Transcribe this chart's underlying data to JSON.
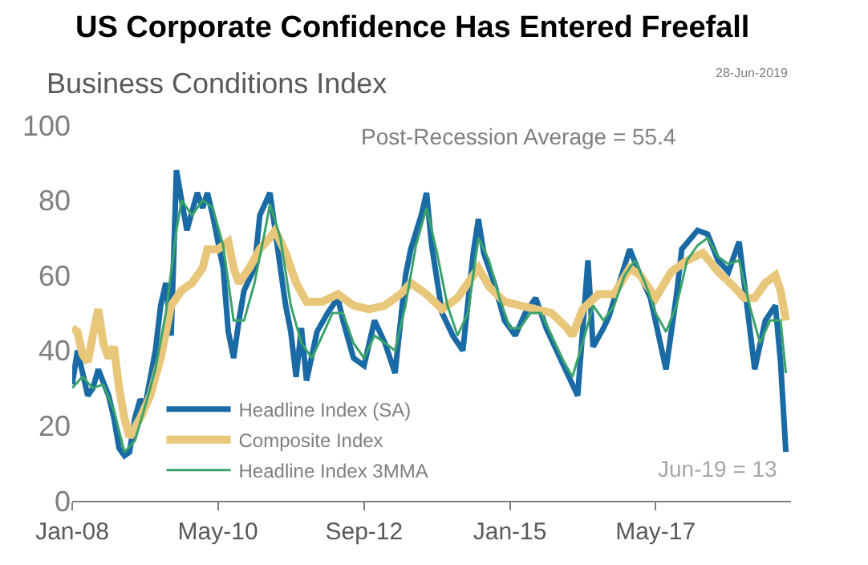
{
  "chart_data": {
    "type": "line",
    "title": "US Corporate Confidence Has Entered Freefall",
    "subtitle": "Business Conditions Index",
    "annotations": [
      "Post-Recession Average = 55.4",
      "28-Jun-2019",
      {
        "text": "Jun-19 = 13",
        "x": "2019-06",
        "y": 13
      }
    ],
    "xlim": [
      "2008-01",
      "2019-07"
    ],
    "xticks": [
      {
        "value": "2008-01",
        "label": "Jan-08"
      },
      {
        "value": "2010-05",
        "label": "May-10"
      },
      {
        "value": "2012-09",
        "label": "Sep-12"
      },
      {
        "value": "2015-01",
        "label": "Jan-15"
      },
      {
        "value": "2017-05",
        "label": "May-17"
      }
    ],
    "ylim": [
      0,
      100
    ],
    "yticks": [
      0,
      20,
      40,
      60,
      80,
      100
    ],
    "legend": "bottom left",
    "series": [
      {
        "name": "Headline Index (SA)",
        "color": "#1a6aa5",
        "x": [
          "2008-01",
          "2008-02",
          "2008-04",
          "2008-05",
          "2008-06",
          "2008-08",
          "2008-09",
          "2008-10",
          "2008-11",
          "2008-12",
          "2009-01",
          "2009-02",
          "2009-03",
          "2009-05",
          "2009-06",
          "2009-07",
          "2009-08",
          "2009-09",
          "2009-10",
          "2009-11",
          "2010-01",
          "2010-02",
          "2010-03",
          "2010-04",
          "2010-06",
          "2010-07",
          "2010-08",
          "2010-09",
          "2010-10",
          "2010-12",
          "2011-01",
          "2011-03",
          "2011-04",
          "2011-05",
          "2011-06",
          "2011-07",
          "2011-08",
          "2011-09",
          "2011-10",
          "2011-12",
          "2012-02",
          "2012-04",
          "2012-05",
          "2012-07",
          "2012-09",
          "2012-11",
          "2013-01",
          "2013-03",
          "2013-05",
          "2013-06",
          "2013-08",
          "2013-09",
          "2013-10",
          "2013-12",
          "2014-02",
          "2014-04",
          "2014-06",
          "2014-07",
          "2014-08",
          "2014-10",
          "2014-12",
          "2015-02",
          "2015-04",
          "2015-06",
          "2015-08",
          "2015-10",
          "2015-12",
          "2016-02",
          "2016-04",
          "2016-05",
          "2016-07",
          "2016-08",
          "2016-10",
          "2016-12",
          "2017-02",
          "2017-04",
          "2017-07",
          "2017-09",
          "2017-10",
          "2018-01",
          "2018-03",
          "2018-05",
          "2018-07",
          "2018-09",
          "2018-10",
          "2018-12",
          "2019-02",
          "2019-04",
          "2019-05",
          "2019-06"
        ],
        "values": [
          31,
          40,
          28,
          30,
          35,
          28,
          22,
          14,
          12,
          13,
          22,
          27,
          25,
          40,
          52,
          58,
          44,
          88,
          80,
          72,
          82,
          78,
          82,
          76,
          62,
          45,
          38,
          48,
          56,
          62,
          76,
          82,
          72,
          62,
          52,
          45,
          33,
          46,
          32,
          45,
          50,
          54,
          48,
          38,
          36,
          48,
          42,
          34,
          60,
          67,
          76,
          82,
          68,
          50,
          44,
          40,
          66,
          75,
          66,
          58,
          48,
          44,
          50,
          54,
          46,
          40,
          34,
          28,
          64,
          41,
          46,
          49,
          58,
          67,
          60,
          54,
          35,
          55,
          67,
          72,
          71,
          64,
          61,
          69,
          58,
          35,
          48,
          52,
          37,
          13
        ]
      },
      {
        "name": "Composite Index",
        "color": "#e8c77a",
        "x": [
          "2008-01",
          "2008-02",
          "2008-03",
          "2008-04",
          "2008-05",
          "2008-06",
          "2008-07",
          "2008-08",
          "2008-09",
          "2008-10",
          "2008-11",
          "2008-12",
          "2009-02",
          "2009-04",
          "2009-06",
          "2009-08",
          "2009-10",
          "2009-12",
          "2010-02",
          "2010-03",
          "2010-05",
          "2010-07",
          "2010-08",
          "2010-09",
          "2010-11",
          "2011-01",
          "2011-03",
          "2011-04",
          "2011-06",
          "2011-08",
          "2011-10",
          "2012-01",
          "2012-04",
          "2012-07",
          "2012-10",
          "2013-01",
          "2013-04",
          "2013-06",
          "2013-09",
          "2013-12",
          "2014-03",
          "2014-07",
          "2014-09",
          "2014-12",
          "2015-03",
          "2015-06",
          "2015-09",
          "2015-12",
          "2016-01",
          "2016-03",
          "2016-06",
          "2016-09",
          "2016-12",
          "2017-02",
          "2017-05",
          "2017-08",
          "2017-11",
          "2018-02",
          "2018-05",
          "2018-08",
          "2018-10",
          "2018-12",
          "2019-02",
          "2019-04",
          "2019-05",
          "2019-06"
        ],
        "values": [
          46,
          45,
          39,
          37,
          44,
          51,
          42,
          38,
          41,
          30,
          22,
          17,
          22,
          28,
          38,
          52,
          56,
          58,
          62,
          67,
          67,
          69,
          62,
          58,
          62,
          67,
          70,
          72,
          66,
          58,
          53,
          53,
          55,
          52,
          51,
          52,
          55,
          58,
          55,
          51,
          54,
          62,
          57,
          53,
          52,
          51,
          50,
          46,
          44,
          51,
          55,
          55,
          62,
          60,
          54,
          61,
          64,
          66,
          61,
          57,
          54,
          54,
          58,
          60,
          56,
          48
        ]
      },
      {
        "name": "Headline Index 3MMA",
        "color": "#3aa36a",
        "x": [
          "2008-01",
          "2008-03",
          "2008-05",
          "2008-07",
          "2008-09",
          "2008-11",
          "2009-01",
          "2009-03",
          "2009-05",
          "2009-07",
          "2009-09",
          "2009-10",
          "2009-12",
          "2010-02",
          "2010-04",
          "2010-06",
          "2010-08",
          "2010-10",
          "2010-12",
          "2011-02",
          "2011-03",
          "2011-05",
          "2011-07",
          "2011-09",
          "2011-11",
          "2012-01",
          "2012-03",
          "2012-05",
          "2012-07",
          "2012-09",
          "2012-11",
          "2013-01",
          "2013-03",
          "2013-05",
          "2013-07",
          "2013-09",
          "2013-11",
          "2014-01",
          "2014-03",
          "2014-05",
          "2014-07",
          "2014-09",
          "2014-11",
          "2015-01",
          "2015-03",
          "2015-05",
          "2015-07",
          "2015-09",
          "2015-11",
          "2016-01",
          "2016-03",
          "2016-05",
          "2016-07",
          "2016-09",
          "2016-11",
          "2017-01",
          "2017-03",
          "2017-05",
          "2017-07",
          "2017-09",
          "2017-11",
          "2018-01",
          "2018-03",
          "2018-05",
          "2018-07",
          "2018-09",
          "2018-11",
          "2019-01",
          "2019-03",
          "2019-05",
          "2019-06"
        ],
        "values": [
          30,
          33,
          30,
          31,
          24,
          13,
          16,
          25,
          35,
          50,
          72,
          80,
          76,
          80,
          78,
          68,
          48,
          48,
          58,
          72,
          79,
          70,
          52,
          42,
          38,
          44,
          50,
          50,
          42,
          38,
          44,
          42,
          40,
          52,
          68,
          78,
          66,
          52,
          44,
          50,
          70,
          64,
          54,
          46,
          46,
          50,
          50,
          44,
          38,
          33,
          42,
          52,
          48,
          52,
          60,
          64,
          58,
          50,
          45,
          52,
          64,
          68,
          70,
          65,
          63,
          64,
          52,
          42,
          48,
          48,
          34
        ]
      }
    ]
  }
}
